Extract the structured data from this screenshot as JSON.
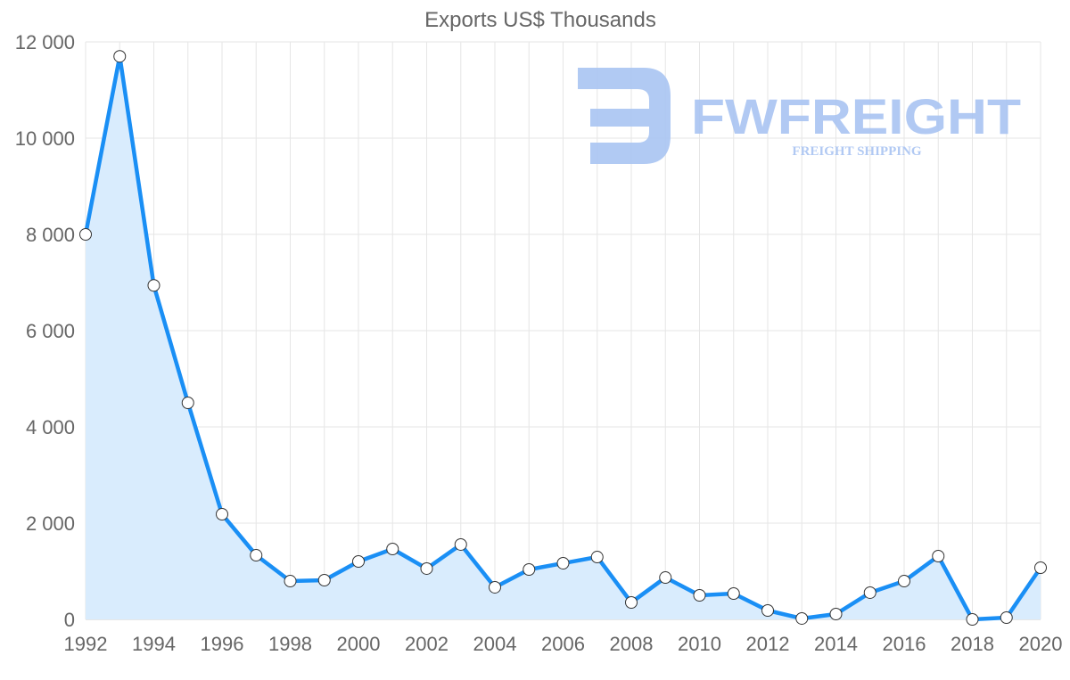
{
  "chart_data": {
    "type": "area",
    "title": "Exports US$ Thousands",
    "xlabel": "",
    "ylabel": "",
    "x": [
      1992,
      1993,
      1994,
      1995,
      1996,
      1997,
      1998,
      1999,
      2000,
      2001,
      2002,
      2003,
      2004,
      2005,
      2006,
      2007,
      2008,
      2009,
      2010,
      2011,
      2012,
      2013,
      2014,
      2015,
      2016,
      2017,
      2018,
      2019,
      2020
    ],
    "series": [
      {
        "name": "Exports US$ Thousands",
        "values": [
          8000,
          11700,
          6940,
          4500,
          2185,
          1333,
          796,
          815,
          1204,
          1463,
          1056,
          1556,
          667,
          1037,
          1167,
          1296,
          352,
          870,
          500,
          537,
          185,
          19,
          111,
          556,
          796,
          1315,
          0,
          37,
          1074
        ]
      }
    ],
    "xlim": [
      1992,
      2020
    ],
    "ylim": [
      0,
      12000
    ],
    "x_tick_labels": [
      "1992",
      "1994",
      "1996",
      "1998",
      "2000",
      "2002",
      "2004",
      "2006",
      "2008",
      "2010",
      "2012",
      "2014",
      "2016",
      "2018",
      "2020"
    ],
    "y_tick_labels": [
      "0",
      "2 000",
      "4 000",
      "6 000",
      "8 000",
      "10 000",
      "12 000"
    ],
    "y_ticks": [
      0,
      2000,
      4000,
      6000,
      8000,
      10000,
      12000
    ],
    "grid": true,
    "legend": "none",
    "colors": {
      "line": "#1a8ff5",
      "fill": "#d9ecfd",
      "point_fill": "#ffffff",
      "point_stroke": "#333333"
    }
  },
  "watermark": {
    "brand": "FWFREIGHT",
    "tagline": "FREIGHT SHIPPING",
    "color": "#a9c4f2"
  }
}
